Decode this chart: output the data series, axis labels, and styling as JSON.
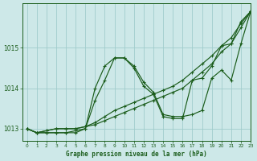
{
  "xlabel": "Graphe pression niveau de la mer (hPa)",
  "background_color": "#cde8e8",
  "grid_color": "#a0cccc",
  "line_color": "#1a5c1a",
  "ylim": [
    1012.7,
    1016.1
  ],
  "xlim": [
    -0.5,
    23
  ],
  "yticks": [
    1013,
    1014,
    1015
  ],
  "xticks": [
    0,
    1,
    2,
    3,
    4,
    5,
    6,
    7,
    8,
    9,
    10,
    11,
    12,
    13,
    14,
    15,
    16,
    17,
    18,
    19,
    20,
    21,
    22,
    23
  ],
  "series": [
    {
      "x": [
        0,
        1,
        2,
        3,
        4,
        5,
        6,
        7,
        8,
        9,
        10,
        11,
        12,
        13,
        14,
        15,
        16,
        17,
        18,
        19,
        20,
        21,
        22,
        23
      ],
      "y": [
        1013.0,
        1012.9,
        1012.95,
        1013.0,
        1013.0,
        1013.0,
        1013.05,
        1013.1,
        1013.2,
        1013.3,
        1013.4,
        1013.5,
        1013.6,
        1013.7,
        1013.8,
        1013.9,
        1014.0,
        1014.2,
        1014.4,
        1014.6,
        1014.9,
        1015.1,
        1015.5,
        1015.9
      ]
    },
    {
      "x": [
        0,
        1,
        2,
        3,
        4,
        5,
        6,
        7,
        8,
        9,
        10,
        11,
        12,
        13,
        14,
        15,
        16,
        17,
        18,
        19,
        20,
        21,
        22,
        23
      ],
      "y": [
        1013.0,
        1012.9,
        1012.95,
        1013.0,
        1013.0,
        1013.0,
        1013.05,
        1013.15,
        1013.3,
        1013.45,
        1013.55,
        1013.65,
        1013.75,
        1013.85,
        1013.95,
        1014.05,
        1014.2,
        1014.4,
        1014.6,
        1014.8,
        1015.05,
        1015.25,
        1015.6,
        1015.9
      ]
    },
    {
      "x": [
        0,
        1,
        2,
        3,
        4,
        5,
        6,
        7,
        8,
        9,
        10,
        11,
        12,
        13,
        14,
        15,
        16,
        17,
        18,
        19,
        20,
        21,
        22,
        23
      ],
      "y": [
        1013.0,
        1012.9,
        1012.9,
        1012.9,
        1012.9,
        1012.95,
        1013.0,
        1014.0,
        1014.55,
        1014.75,
        1014.75,
        1014.55,
        1014.15,
        1013.9,
        1013.35,
        1013.3,
        1013.3,
        1013.35,
        1013.45,
        1014.25,
        1014.45,
        1014.2,
        1015.1,
        1015.9
      ]
    },
    {
      "x": [
        0,
        1,
        2,
        3,
        4,
        5,
        6,
        7,
        8,
        9,
        10,
        11,
        12,
        13,
        14,
        15,
        16,
        17,
        18,
        19,
        20,
        21,
        22,
        23
      ],
      "y": [
        1013.0,
        1012.9,
        1012.9,
        1012.9,
        1012.9,
        1012.9,
        1013.0,
        1013.7,
        1014.2,
        1014.75,
        1014.75,
        1014.5,
        1014.05,
        1013.85,
        1013.3,
        1013.25,
        1013.25,
        1014.2,
        1014.25,
        1014.55,
        1015.05,
        1015.1,
        1015.65,
        1015.9
      ]
    }
  ]
}
